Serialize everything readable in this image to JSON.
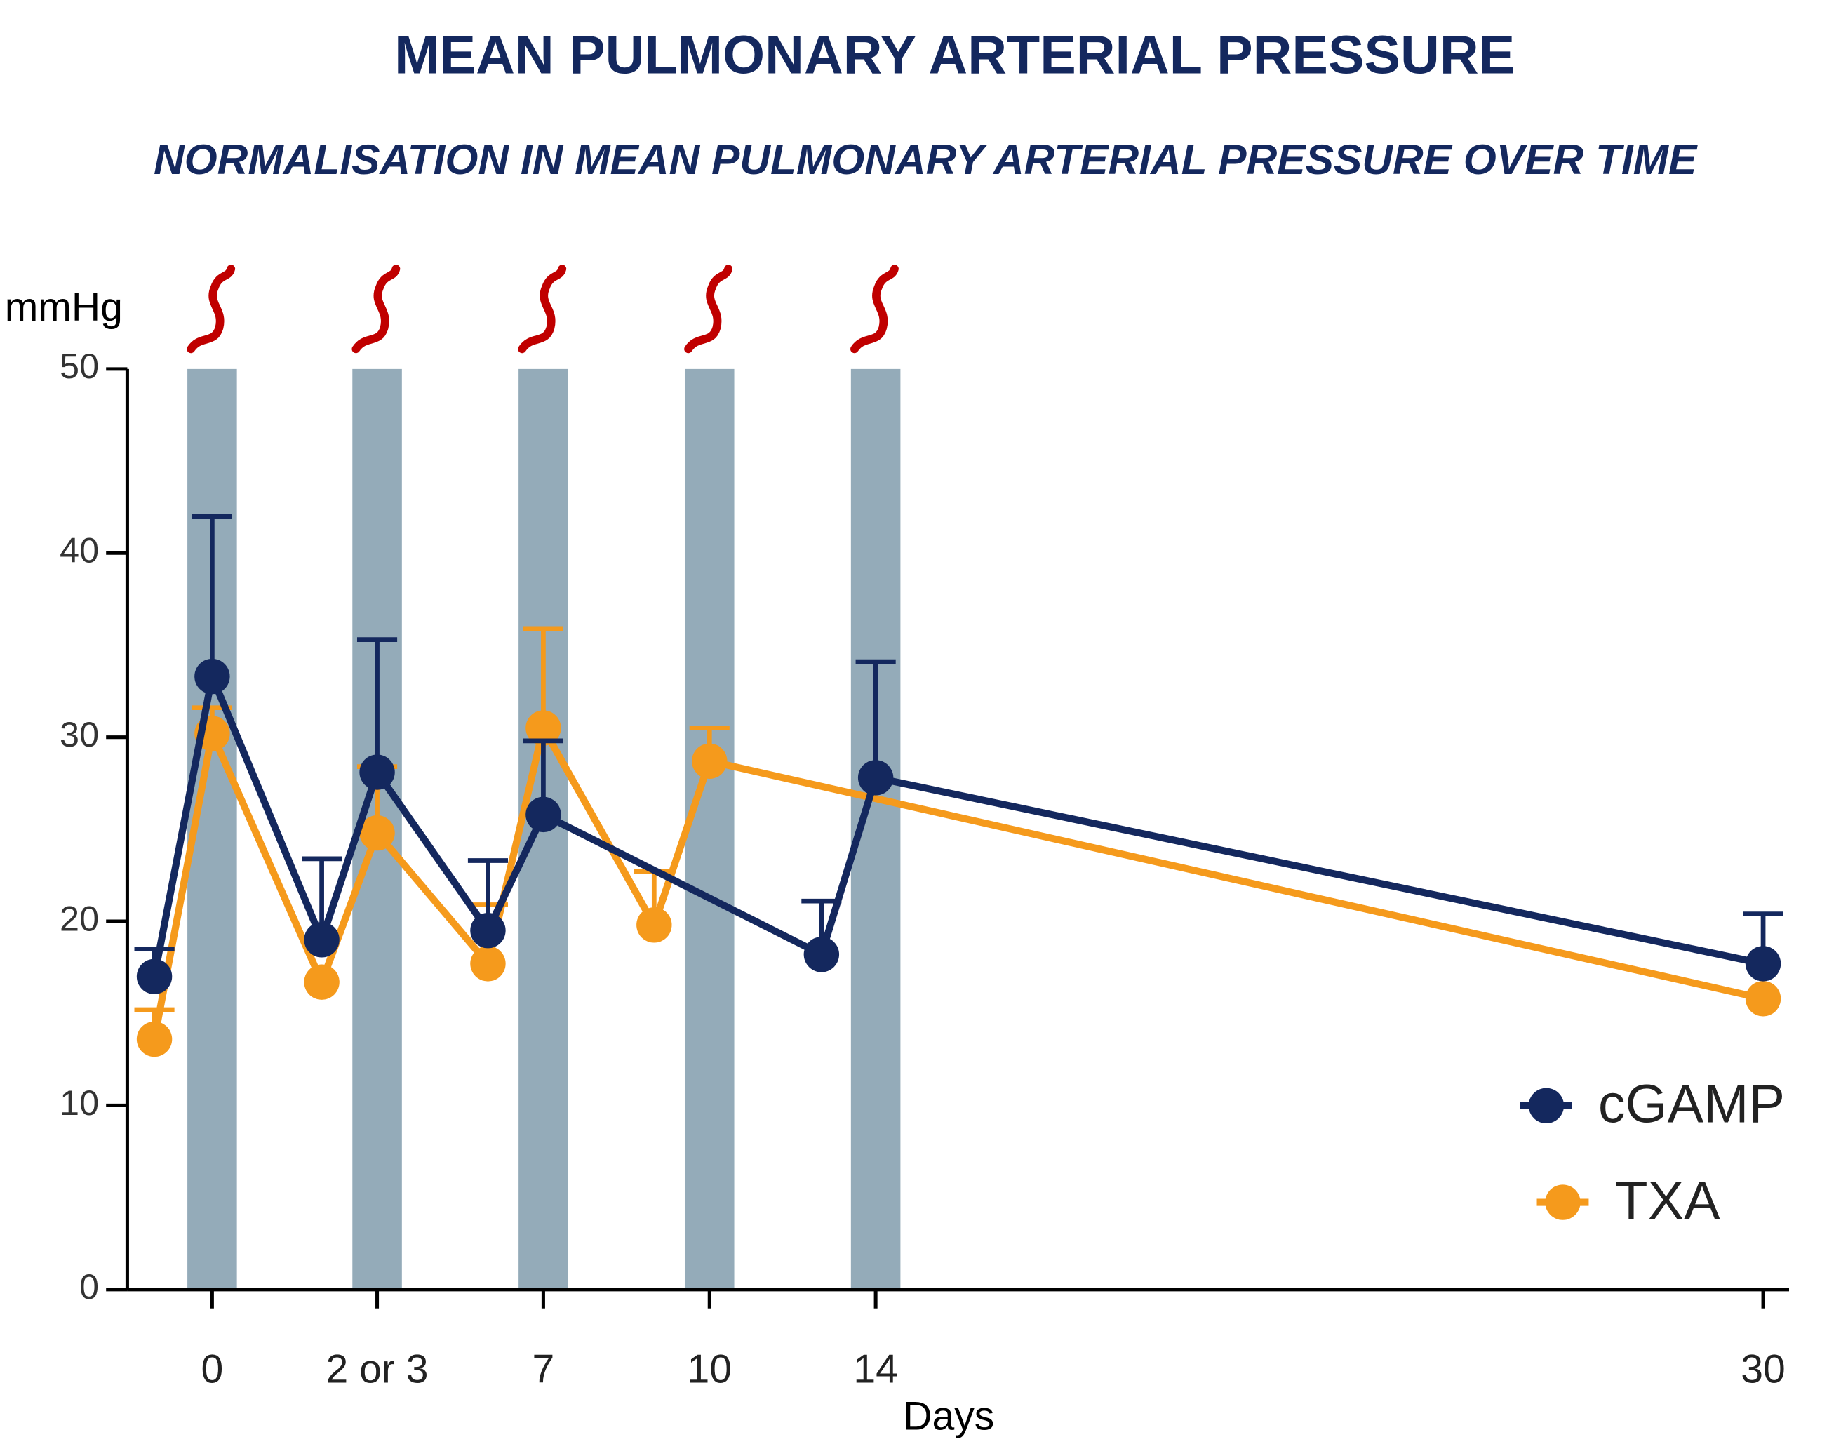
{
  "chart_data": {
    "type": "line",
    "title": "MEAN PULMONARY ARTERIAL PRESSURE",
    "subtitle": "NORMALISATION IN MEAN PULMONARY ARTERIAL PRESSURE OVER TIME",
    "y_label": "mmHg",
    "x_label": "Days",
    "categories": [
      null,
      "0",
      null,
      "2 or 3",
      null,
      "7",
      null,
      "10",
      null,
      "14",
      "30"
    ],
    "series": [
      {
        "name": "cGAMP",
        "color": "#14285e",
        "values": [
          17,
          33.3,
          19,
          28.1,
          19.5,
          25.8,
          null,
          null,
          18.2,
          27.8,
          17.7
        ],
        "errors": [
          1.5,
          8.7,
          4.4,
          7.2,
          3.8,
          4.0,
          null,
          null,
          2.9,
          6.3,
          2.7
        ]
      },
      {
        "name": "TXA",
        "color": "#f59a1c",
        "values": [
          13.6,
          30.2,
          16.7,
          24.8,
          17.7,
          30.5,
          19.8,
          28.7,
          null,
          null,
          15.8
        ],
        "errors": [
          1.6,
          1.4,
          null,
          3.6,
          3.2,
          5.4,
          2.9,
          1.8,
          null,
          null,
          null
        ]
      }
    ],
    "ylim": [
      0,
      50
    ],
    "yticks": [
      0,
      10,
      20,
      30,
      40,
      50
    ]
  }
}
